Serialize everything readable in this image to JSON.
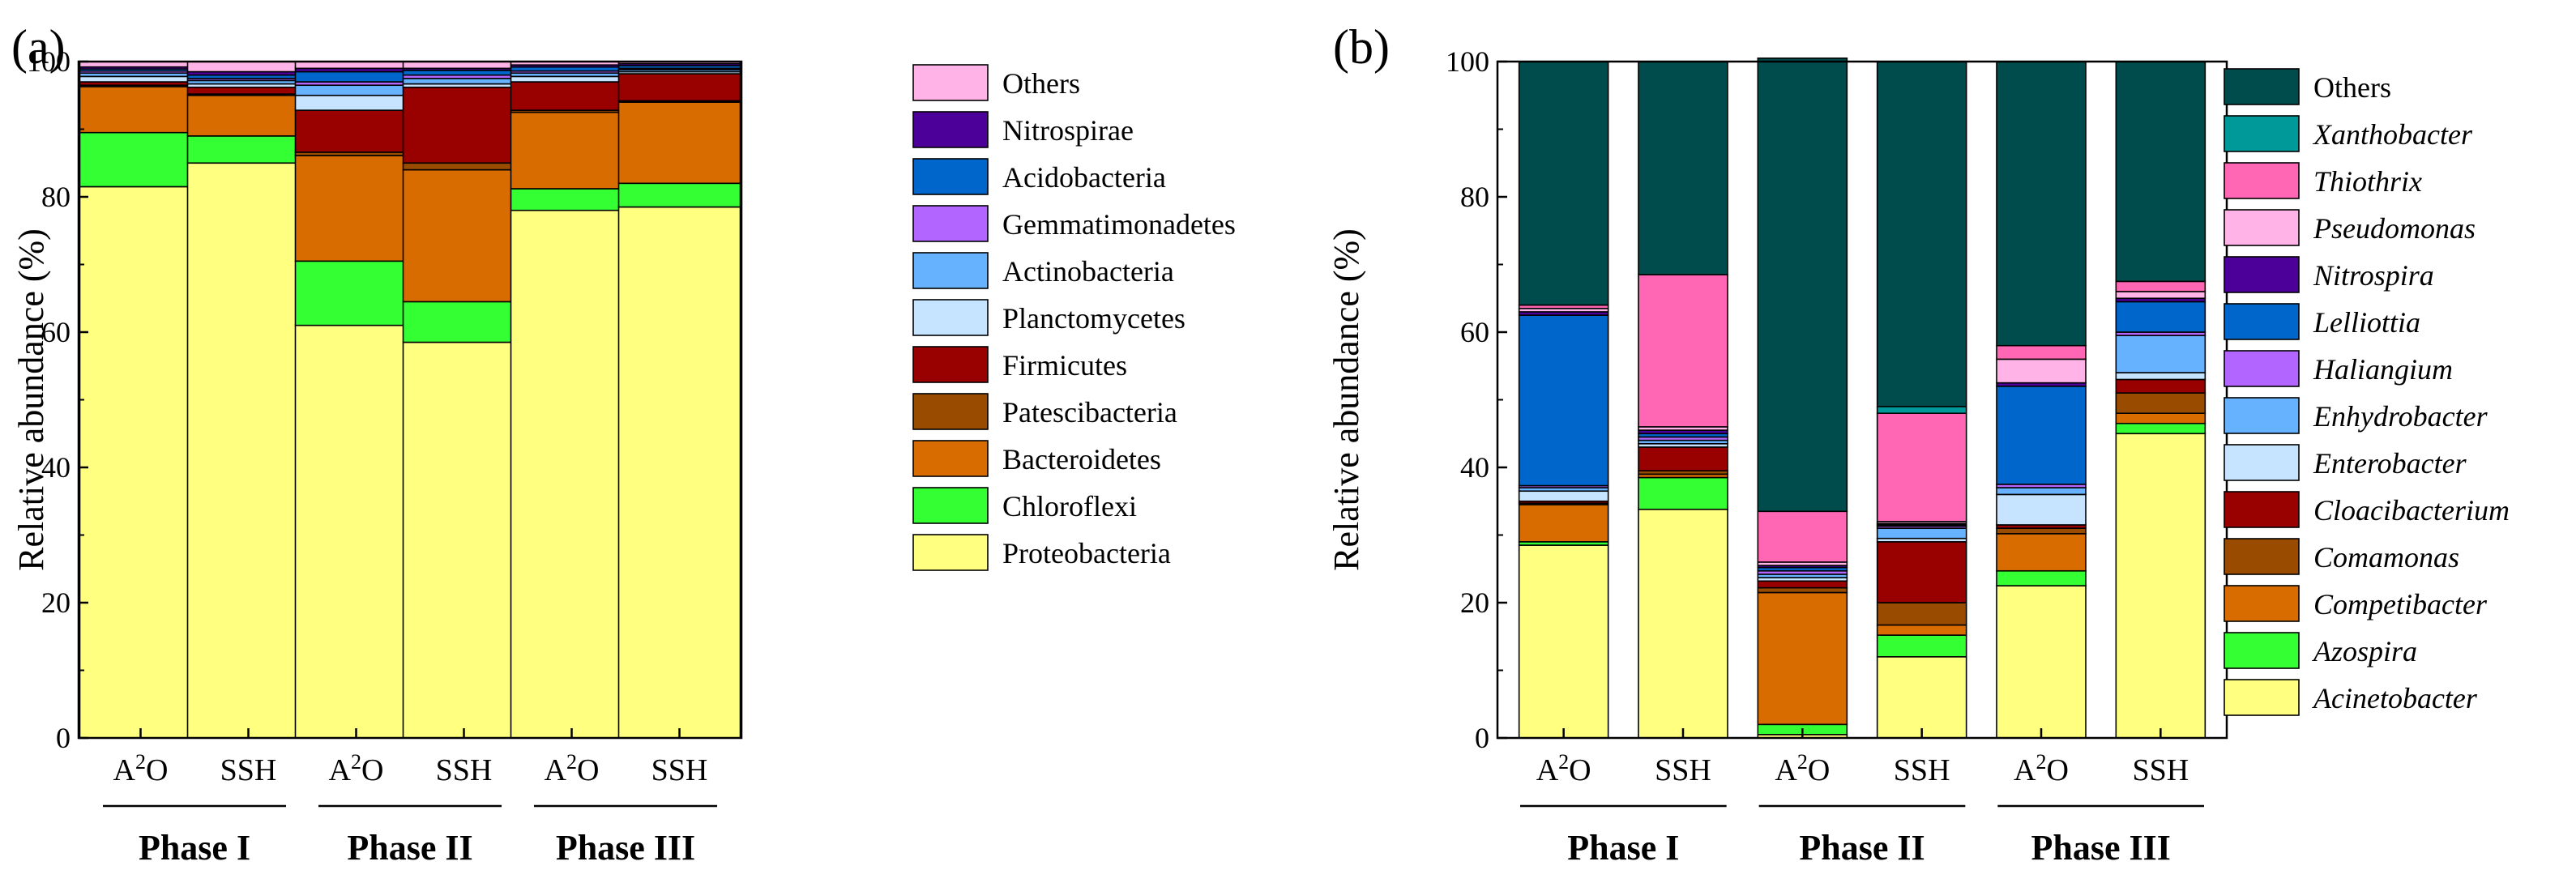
{
  "chart_data": [
    {
      "type": "bar",
      "stacked": true,
      "panel_label": "(a)",
      "ylabel": "Relative abundance (%)",
      "ylim": [
        0,
        100
      ],
      "yticks": [
        0,
        20,
        40,
        60,
        80,
        100
      ],
      "categories": [
        "A2O",
        "SSH",
        "A2O",
        "SSH",
        "A2O",
        "SSH"
      ],
      "category_labels": [
        {
          "base": "A",
          "sup": "2",
          "tail": "O"
        },
        {
          "base": "SSH",
          "sup": "",
          "tail": ""
        },
        {
          "base": "A",
          "sup": "2",
          "tail": "O"
        },
        {
          "base": "SSH",
          "sup": "",
          "tail": ""
        },
        {
          "base": "A",
          "sup": "2",
          "tail": "O"
        },
        {
          "base": "SSH",
          "sup": "",
          "tail": ""
        }
      ],
      "groups": [
        {
          "label": "Phase I",
          "start": 0,
          "end": 1
        },
        {
          "label": "Phase II",
          "start": 2,
          "end": 3
        },
        {
          "label": "Phase III",
          "start": 4,
          "end": 5
        }
      ],
      "legend_position": "right",
      "series": [
        {
          "name": "Proteobacteria",
          "color": "#ffff80",
          "values": [
            81.5,
            85.0,
            61.0,
            58.5,
            78.0,
            78.5
          ]
        },
        {
          "name": "Chloroflexi",
          "color": "#33ff33",
          "values": [
            8.0,
            4.0,
            9.5,
            6.0,
            3.2,
            3.5
          ]
        },
        {
          "name": "Bacteroidetes",
          "color": "#d96c00",
          "values": [
            6.8,
            6.0,
            15.6,
            19.5,
            11.3,
            12.0
          ]
        },
        {
          "name": "Patescibacteria",
          "color": "#994c00",
          "values": [
            0.2,
            0.2,
            0.5,
            1.0,
            0.3,
            0.2
          ]
        },
        {
          "name": "Firmicutes",
          "color": "#990000",
          "values": [
            0.5,
            1.0,
            6.2,
            11.2,
            4.2,
            4.0
          ]
        },
        {
          "name": "Planctomycetes",
          "color": "#c6e4ff",
          "values": [
            0.8,
            0.5,
            2.2,
            0.5,
            0.8,
            0.3
          ]
        },
        {
          "name": "Actinobacteria",
          "color": "#66b2ff",
          "values": [
            0.5,
            0.5,
            1.5,
            0.8,
            0.5,
            0.3
          ]
        },
        {
          "name": "Gemmatimonadetes",
          "color": "#b266ff",
          "values": [
            0.3,
            0.3,
            0.5,
            0.5,
            0.3,
            0.2
          ]
        },
        {
          "name": "Acidobacteria",
          "color": "#0066cc",
          "values": [
            0.3,
            0.5,
            1.5,
            0.7,
            0.6,
            0.4
          ]
        },
        {
          "name": "Nitrospirae",
          "color": "#4c0099",
          "values": [
            0.3,
            0.5,
            0.5,
            0.3,
            0.3,
            0.3
          ]
        },
        {
          "name": "Others",
          "color": "#ffb3e6",
          "values": [
            0.8,
            1.5,
            1.0,
            1.0,
            0.5,
            0.3
          ]
        }
      ]
    },
    {
      "type": "bar",
      "stacked": true,
      "panel_label": "(b)",
      "ylabel": "Relative abundance (%)",
      "ylim": [
        0,
        100
      ],
      "yticks": [
        0,
        20,
        40,
        60,
        80,
        100
      ],
      "categories": [
        "A2O",
        "SSH",
        "A2O",
        "SSH",
        "A2O",
        "SSH"
      ],
      "category_labels": [
        {
          "base": "A",
          "sup": "2",
          "tail": "O"
        },
        {
          "base": "SSH",
          "sup": "",
          "tail": ""
        },
        {
          "base": "A",
          "sup": "2",
          "tail": "O"
        },
        {
          "base": "SSH",
          "sup": "",
          "tail": ""
        },
        {
          "base": "A",
          "sup": "2",
          "tail": "O"
        },
        {
          "base": "SSH",
          "sup": "",
          "tail": ""
        }
      ],
      "groups": [
        {
          "label": "Phase I",
          "start": 0,
          "end": 1
        },
        {
          "label": "Phase II",
          "start": 2,
          "end": 3
        },
        {
          "label": "Phase III",
          "start": 4,
          "end": 5
        }
      ],
      "legend_position": "right",
      "series": [
        {
          "name": "Acinetobacter",
          "italic": true,
          "color": "#ffff80",
          "values": [
            28.5,
            33.8,
            0.5,
            12.0,
            22.5,
            45.0
          ]
        },
        {
          "name": "Azospira",
          "italic": true,
          "color": "#33ff33",
          "values": [
            0.5,
            4.7,
            1.5,
            3.2,
            2.2,
            1.5
          ]
        },
        {
          "name": "Competibacter",
          "italic": true,
          "color": "#d96c00",
          "values": [
            5.5,
            0.5,
            19.5,
            1.5,
            5.5,
            1.5
          ]
        },
        {
          "name": "Comamonas",
          "italic": true,
          "color": "#994c00",
          "values": [
            0.2,
            0.5,
            0.7,
            3.3,
            0.8,
            3.0
          ]
        },
        {
          "name": "Cloacibacterium",
          "italic": true,
          "color": "#990000",
          "values": [
            0.3,
            3.5,
            1.0,
            9.0,
            0.5,
            2.0
          ]
        },
        {
          "name": "Enterobacter",
          "italic": true,
          "color": "#c6e4ff",
          "values": [
            1.5,
            0.5,
            0.5,
            0.5,
            4.5,
            1.0
          ]
        },
        {
          "name": "Enhydrobacter",
          "italic": true,
          "color": "#66b2ff",
          "values": [
            0.5,
            0.5,
            0.5,
            1.5,
            1.0,
            5.5
          ]
        },
        {
          "name": "Haliangium",
          "italic": true,
          "color": "#b266ff",
          "values": [
            0.3,
            0.5,
            0.5,
            0.3,
            0.5,
            0.5
          ]
        },
        {
          "name": "Lelliottia",
          "italic": true,
          "color": "#0066cc",
          "values": [
            25.2,
            0.5,
            0.5,
            0.2,
            14.5,
            4.5
          ]
        },
        {
          "name": "Nitrospira",
          "italic": true,
          "color": "#4c0099",
          "values": [
            0.5,
            0.5,
            0.3,
            0.2,
            0.5,
            0.5
          ]
        },
        {
          "name": "Pseudomonas",
          "italic": true,
          "color": "#ffb3e6",
          "values": [
            0.5,
            0.5,
            0.5,
            0.3,
            3.5,
            1.0
          ]
        },
        {
          "name": "Thiothrix",
          "italic": true,
          "color": "#ff66b3",
          "values": [
            0.5,
            22.5,
            7.5,
            16.0,
            2.0,
            1.5
          ]
        },
        {
          "name": "Xanthobacter",
          "italic": true,
          "color": "#009999",
          "values": [
            0.0,
            0.0,
            0.0,
            1.0,
            0.0,
            0.0
          ]
        },
        {
          "name": "Others",
          "italic": false,
          "color": "#004c4c",
          "values": [
            36.0,
            31.5,
            67.0,
            51.0,
            42.0,
            32.5
          ]
        }
      ]
    }
  ]
}
